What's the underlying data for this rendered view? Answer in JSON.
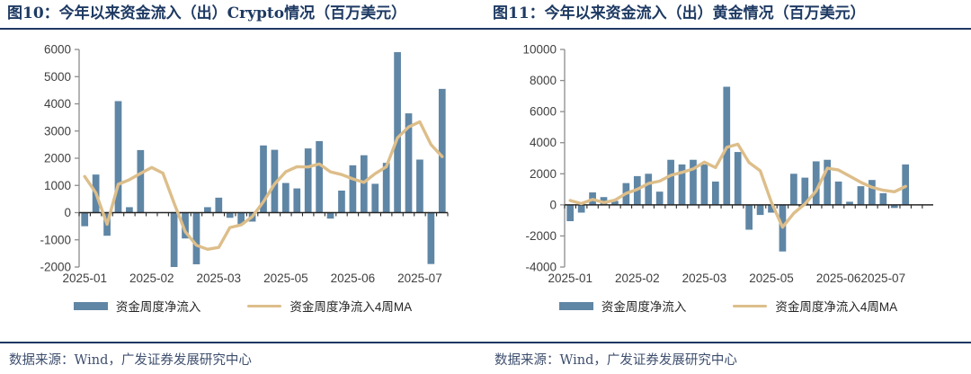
{
  "colors": {
    "bar": "#5f86a5",
    "line": "#ddbe8a",
    "title_text": "#1e3a63",
    "rule": "#1f3864",
    "source_text": "#3e4f6e",
    "axis_text": "#404040",
    "axis_line": "#8c8c8c",
    "zero_line": "#262626"
  },
  "chart_data": [
    {
      "panel": "crypto",
      "type": "bar",
      "title": "图10：今年以来资金流入（出）Crypto情况（百万美元）",
      "source": "数据来源：Wind，广发证券发展研究中心",
      "legend": [
        "资金周度净流入",
        "资金周度净流入4周MA"
      ],
      "legend_position": "bottom",
      "grid": false,
      "ylim": [
        -2000,
        6000
      ],
      "ytick_step": 1000,
      "x_tick_labels": [
        "2025-01",
        "2025-02",
        "2025-03",
        "2025-05",
        "2025-06",
        "2025-07"
      ],
      "x_tick_bar_index": [
        0,
        6,
        12,
        18,
        24,
        30
      ],
      "bar_area_frac": 1.0,
      "series": [
        {
          "name": "资金周度净流入",
          "type": "bar",
          "values": [
            -500,
            1400,
            -850,
            4100,
            200,
            2300,
            0,
            0,
            -2050,
            -950,
            -1900,
            200,
            550,
            -190,
            -440,
            -330,
            2470,
            2310,
            1090,
            890,
            2360,
            2630,
            -220,
            810,
            1740,
            2110,
            1060,
            1830,
            5900,
            3650,
            1950,
            -1890,
            4550
          ]
        },
        {
          "name": "资金周度净流入4周MA",
          "type": "line",
          "values": [
            1330,
            730,
            -430,
            1040,
            1210,
            1440,
            1660,
            1450,
            350,
            -700,
            -1200,
            -1350,
            -1280,
            -550,
            -450,
            -150,
            400,
            1050,
            1500,
            1690,
            1680,
            1790,
            1500,
            1400,
            1240,
            1110,
            1430,
            1690,
            2750,
            3150,
            3340,
            2500,
            2060
          ]
        }
      ]
    },
    {
      "panel": "gold",
      "type": "bar",
      "title": "图11：今年以来资金流入（出）黄金情况（百万美元）",
      "source": "数据来源：Wind，广发证券发展研究中心",
      "legend": [
        "资金周度净流入",
        "资金周度净流入4周MA"
      ],
      "legend_position": "bottom",
      "grid": false,
      "ylim": [
        -4000,
        10000
      ],
      "ytick_step": 2000,
      "x_tick_labels": [
        "2025-01",
        "2025-02",
        "2025-03",
        "2025-05",
        "2025-06",
        "2025-07"
      ],
      "x_tick_bar_index": [
        0,
        6,
        12,
        18,
        24,
        28
      ],
      "bar_area_frac": 0.94,
      "series": [
        {
          "name": "资金周度净流入",
          "type": "bar",
          "values": [
            -1050,
            -500,
            800,
            500,
            250,
            1400,
            1850,
            2000,
            850,
            2900,
            2600,
            2900,
            2600,
            1500,
            7600,
            3400,
            -1600,
            -650,
            -500,
            -3000,
            2000,
            1750,
            2800,
            2900,
            1500,
            200,
            1200,
            1600,
            750,
            -200,
            2600
          ]
        },
        {
          "name": "资金周度净流入4周MA",
          "type": "line",
          "values": [
            280,
            80,
            350,
            150,
            300,
            740,
            1000,
            1375,
            1525,
            1900,
            2090,
            2310,
            2750,
            2400,
            3700,
            3900,
            2725,
            2190,
            160,
            -1440,
            -540,
            60,
            890,
            2360,
            2240,
            1850,
            1450,
            1125,
            940,
            840,
            1190
          ]
        }
      ]
    }
  ]
}
